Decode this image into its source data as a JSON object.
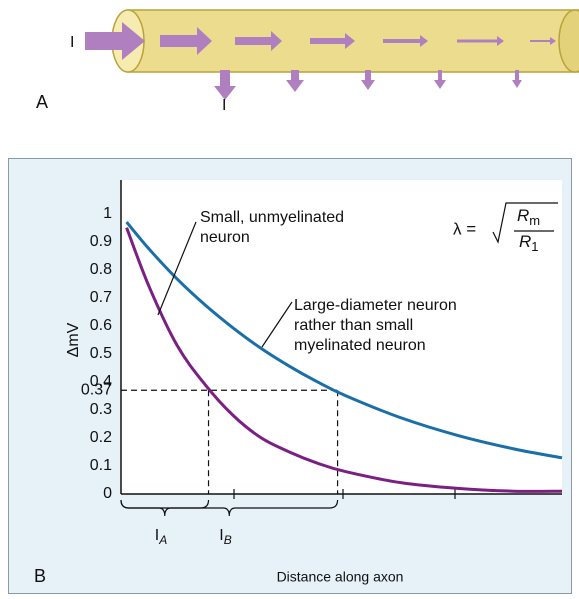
{
  "panel_a": {
    "label": "A",
    "current_in": "I",
    "current_out": "I"
  },
  "chart_data": {
    "type": "line",
    "panel_label": "B",
    "y_label": "ΔmV",
    "x_label": "Distance along axon",
    "formula": {
      "lhs": "λ =",
      "num": "R",
      "num_sub": "m",
      "den": "R",
      "den_sub": "1"
    },
    "x": [
      0.05,
      0.25,
      0.5,
      0.75,
      1,
      1.25,
      1.5,
      1.75,
      2,
      2.5,
      3,
      3.5,
      3.93
    ],
    "series": [
      {
        "name": "Small, unmyelinated\nneuron",
        "color": "#7b1f82",
        "values": [
          0.95,
          0.74,
          0.53,
          0.39,
          0.28,
          0.2,
          0.15,
          0.11,
          0.08,
          0.04,
          0.02,
          0.01,
          0.01
        ]
      },
      {
        "name": "Large-diameter neuron\nrather than small\nmyelinated neuron",
        "color": "#1a6fa8",
        "values": [
          0.97,
          0.874,
          0.767,
          0.674,
          0.592,
          0.519,
          0.456,
          0.4,
          0.351,
          0.271,
          0.209,
          0.161,
          0.129
        ]
      }
    ],
    "annotations": [
      {
        "x": 0.78,
        "label": "I",
        "sub": "A"
      },
      {
        "x": 1.93,
        "label": "I",
        "sub": "B"
      }
    ],
    "ylim": [
      0,
      1.12
    ],
    "xlim": [
      0,
      3.93
    ],
    "yticks": [
      0,
      0.1,
      0.2,
      0.3,
      0.37,
      0.4,
      0.5,
      0.6,
      0.7,
      0.8,
      0.9,
      1
    ]
  }
}
